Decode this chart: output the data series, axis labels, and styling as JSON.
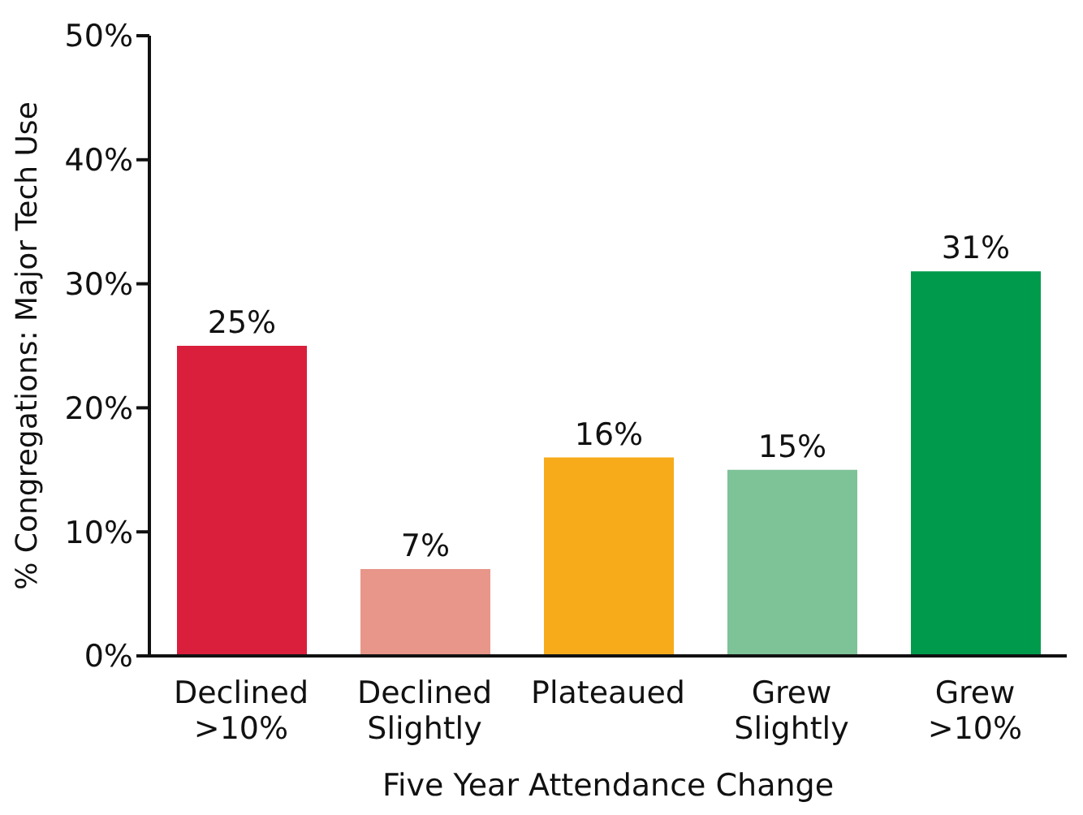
{
  "chart_data": {
    "type": "bar",
    "xlabel": "Five Year Attendance Change",
    "ylabel": "% Congregations: Major Tech Use",
    "categories": [
      "Declined >10%",
      "Declined Slightly",
      "Plateaued",
      "Grew Slightly",
      "Grew >10%"
    ],
    "values": [
      25,
      7,
      16,
      15,
      31
    ],
    "colors": [
      "#d91f3c",
      "#e8968a",
      "#f7ab1b",
      "#7ec297",
      "#009a4c"
    ],
    "value_labels": [
      "25%",
      "7%",
      "16%",
      "15%",
      "31%"
    ],
    "ylim": [
      0,
      50
    ],
    "yticks": [
      {
        "value": 0,
        "label": "0%"
      },
      {
        "value": 10,
        "label": "10%"
      },
      {
        "value": 20,
        "label": "20%"
      },
      {
        "value": 30,
        "label": "30%"
      },
      {
        "value": 40,
        "label": "40%"
      },
      {
        "value": 50,
        "label": "50%"
      }
    ],
    "grid": false,
    "legend": false
  }
}
